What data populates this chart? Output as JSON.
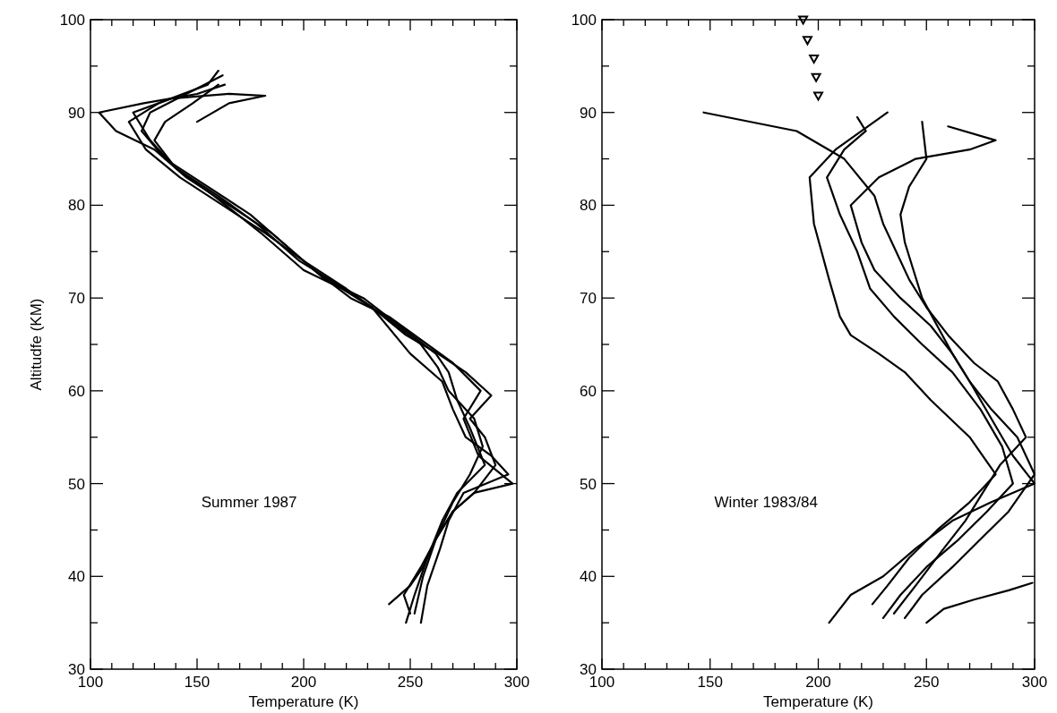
{
  "chart_data": [
    {
      "type": "line",
      "xlabel": "Temperature (K)",
      "ylabel": "Altitudfe (KM)",
      "annotations": [
        "Summer 1987"
      ],
      "line_style": "solid",
      "grid": false,
      "xlim": [
        100,
        300
      ],
      "ylim": [
        30,
        100
      ],
      "xticks": [
        100,
        {
          "value": 110,
          "label": null
        },
        {
          "value": 120,
          "label": null
        },
        {
          "value": 130,
          "label": null
        },
        {
          "value": 140,
          "label": null
        },
        150,
        {
          "value": 160,
          "label": null
        },
        {
          "value": 170,
          "label": null
        },
        {
          "value": 180,
          "label": null
        },
        {
          "value": 190,
          "label": null
        },
        200,
        {
          "value": 210,
          "label": null
        },
        {
          "value": 220,
          "label": null
        },
        {
          "value": 230,
          "label": null
        },
        {
          "value": 240,
          "label": null
        },
        250,
        {
          "value": 260,
          "label": null
        },
        {
          "value": 270,
          "label": null
        },
        {
          "value": 280,
          "label": null
        },
        {
          "value": 290,
          "label": null
        },
        300
      ],
      "yticks": [
        30,
        {
          "value": 35,
          "label": null
        },
        40,
        {
          "value": 45,
          "label": null
        },
        50,
        {
          "value": 55,
          "label": null
        },
        60,
        {
          "value": 65,
          "label": null
        },
        70,
        {
          "value": 75,
          "label": null
        },
        80,
        {
          "value": 85,
          "label": null
        },
        90,
        {
          "value": 95,
          "label": null
        },
        100
      ],
      "series": [
        {
          "color": "#000000",
          "x": [
            248,
            252,
            258,
            265,
            272,
            285,
            278,
            272,
            268,
            262,
            245,
            228,
            210,
            195,
            175,
            155,
            135,
            124,
            128,
            145,
            162
          ],
          "values": [
            35,
            38,
            42,
            46,
            49,
            52,
            56,
            59,
            62,
            64,
            67,
            70,
            72,
            75,
            79,
            82,
            85,
            88,
            90,
            92,
            94
          ]
        },
        {
          "color": "#000000",
          "x": [
            240,
            250,
            256,
            262,
            270,
            280,
            298,
            282,
            275,
            283,
            270,
            258,
            240,
            222,
            205,
            185,
            165,
            145,
            130,
            112,
            104,
            125,
            150,
            163
          ],
          "values": [
            37,
            39,
            41,
            44,
            47,
            49,
            50,
            53,
            57,
            60,
            63,
            65,
            68,
            70,
            73,
            77,
            80,
            83,
            86,
            88,
            90,
            91,
            92,
            93
          ]
        },
        {
          "color": "#000000",
          "x": [
            255,
            258,
            264,
            268,
            275,
            296,
            288,
            276,
            270,
            265,
            250,
            232,
            218,
            200,
            180,
            158,
            140,
            128,
            120,
            138,
            165,
            182,
            165,
            150
          ],
          "values": [
            35,
            39,
            43,
            46,
            49,
            51,
            53,
            55,
            58,
            61,
            64,
            69,
            71,
            73,
            77,
            81,
            84,
            87,
            90,
            91.5,
            92,
            91.8,
            91,
            89
          ]
        },
        {
          "color": "#000000",
          "x": [
            250,
            247,
            255,
            262,
            270,
            280,
            290,
            285,
            278,
            288,
            276,
            263,
            248,
            232,
            212,
            198,
            178,
            160,
            140,
            130,
            135,
            148,
            160
          ],
          "values": [
            36,
            38,
            41,
            44,
            47,
            49,
            52,
            55,
            57,
            59.5,
            62,
            64,
            66,
            69,
            72,
            74,
            78,
            81,
            84,
            87,
            89,
            91,
            93
          ]
        },
        {
          "color": "#000000",
          "x": [
            252,
            256,
            262,
            270,
            278,
            284,
            280,
            268,
            263,
            255,
            238,
            220,
            200,
            182,
            162,
            142,
            126,
            118,
            132,
            155,
            160
          ],
          "values": [
            36,
            40,
            44,
            48,
            51,
            54,
            57,
            60,
            62.5,
            65,
            68,
            71,
            74,
            77,
            80,
            83,
            86,
            89,
            91,
            93,
            94.5
          ]
        }
      ]
    },
    {
      "type": "line",
      "xlabel": "Temperature (K)",
      "annotations": [
        "Winter 1983/84"
      ],
      "line_style": "solid",
      "grid": false,
      "xlim": [
        100,
        300
      ],
      "ylim": [
        30,
        100
      ],
      "xticks": [
        100,
        {
          "value": 110,
          "label": null
        },
        {
          "value": 120,
          "label": null
        },
        {
          "value": 130,
          "label": null
        },
        {
          "value": 140,
          "label": null
        },
        150,
        {
          "value": 160,
          "label": null
        },
        {
          "value": 170,
          "label": null
        },
        {
          "value": 180,
          "label": null
        },
        {
          "value": 190,
          "label": null
        },
        200,
        {
          "value": 210,
          "label": null
        },
        {
          "value": 220,
          "label": null
        },
        {
          "value": 230,
          "label": null
        },
        {
          "value": 240,
          "label": null
        },
        250,
        {
          "value": 260,
          "label": null
        },
        {
          "value": 270,
          "label": null
        },
        {
          "value": 280,
          "label": null
        },
        {
          "value": 290,
          "label": null
        },
        300
      ],
      "yticks": [
        30,
        {
          "value": 35,
          "label": null
        },
        40,
        {
          "value": 45,
          "label": null
        },
        50,
        {
          "value": 55,
          "label": null
        },
        60,
        {
          "value": 65,
          "label": null
        },
        70,
        {
          "value": 75,
          "label": null
        },
        80,
        {
          "value": 85,
          "label": null
        },
        90,
        {
          "value": 95,
          "label": null
        },
        100
      ],
      "series": [
        {
          "color": "#000000",
          "x": [
            230,
            238,
            250,
            265,
            278,
            290,
            285,
            275,
            262,
            248,
            235,
            224,
            218,
            210,
            204,
            212,
            222,
            218
          ],
          "values": [
            35.5,
            38,
            41,
            44,
            47,
            50,
            54,
            58,
            62,
            65,
            68,
            71,
            75,
            79,
            83,
            86,
            88,
            89.5
          ]
        },
        {
          "color": "#000000",
          "x": [
            205,
            215,
            230,
            245,
            262,
            280,
            300,
            290,
            280,
            270,
            262,
            252,
            238,
            226,
            220,
            215,
            228,
            245,
            270,
            282,
            260
          ],
          "values": [
            35,
            38,
            40,
            43,
            46,
            48,
            50,
            53,
            57,
            61,
            64,
            67,
            70,
            73,
            76,
            80,
            83,
            85,
            86,
            87,
            88.5
          ]
        },
        {
          "color": "#000000",
          "x": [
            235,
            245,
            258,
            268,
            276,
            284,
            296,
            290,
            283,
            272,
            260,
            250,
            242,
            236,
            230,
            226,
            212,
            190,
            147
          ],
          "values": [
            36,
            39,
            43,
            46,
            49,
            52,
            55,
            58,
            61,
            63,
            66,
            69,
            72,
            75,
            78,
            81,
            85,
            88,
            90
          ]
        },
        {
          "color": "#000000",
          "x": [
            225,
            232,
            242,
            255,
            270,
            282,
            270,
            252,
            240,
            228,
            215,
            210,
            205,
            198,
            196,
            208,
            220,
            232
          ],
          "values": [
            37,
            39,
            42,
            45,
            48,
            51,
            55,
            59,
            62,
            64,
            66,
            68,
            72,
            78,
            83,
            86,
            88,
            90
          ]
        },
        {
          "color": "#000000",
          "x": [
            240,
            248,
            262,
            275,
            288,
            300,
            292,
            280,
            270,
            262,
            255,
            248,
            244,
            240,
            238,
            242,
            250,
            248
          ],
          "values": [
            35.5,
            38,
            41,
            44,
            47,
            51,
            55,
            58,
            61,
            64,
            67,
            70,
            73,
            76,
            79,
            82,
            85,
            89
          ]
        },
        {
          "color": "#000000",
          "x": [
            250,
            258,
            272,
            288,
            299
          ],
          "values": [
            35,
            36.5,
            37.5,
            38.5,
            39.3
          ]
        },
        {
          "type": "scatter",
          "marker": "triangle",
          "color": "#000000",
          "x": [
            193,
            195,
            198,
            199,
            200
          ],
          "values": [
            100,
            97.8,
            95.8,
            93.8,
            91.8
          ]
        }
      ]
    }
  ]
}
